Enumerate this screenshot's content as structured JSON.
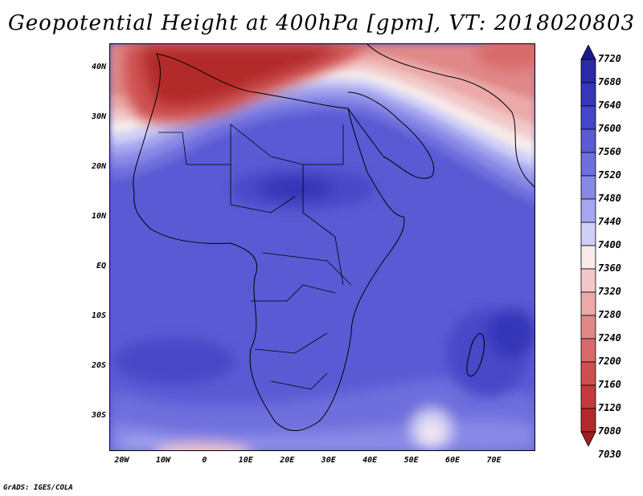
{
  "title": "Geopotential Height at 400hPa [gpm], VT: 2018020803",
  "footer": "GrADS: IGES/COLA",
  "map": {
    "lon_range": [
      -23,
      80
    ],
    "lat_range": [
      -37,
      45
    ],
    "lat_ticks": [
      {
        "label": "40N",
        "lat": 40
      },
      {
        "label": "30N",
        "lat": 30
      },
      {
        "label": "20N",
        "lat": 20
      },
      {
        "label": "10N",
        "lat": 10
      },
      {
        "label": "EQ",
        "lat": 0
      },
      {
        "label": "10S",
        "lat": -10
      },
      {
        "label": "20S",
        "lat": -20
      },
      {
        "label": "30S",
        "lat": -30
      }
    ],
    "lon_ticks": [
      {
        "label": "20W",
        "lon": -20
      },
      {
        "label": "10W",
        "lon": -10
      },
      {
        "label": "0",
        "lon": 0
      },
      {
        "label": "10E",
        "lon": 10
      },
      {
        "label": "20E",
        "lon": 20
      },
      {
        "label": "30E",
        "lon": 30
      },
      {
        "label": "40E",
        "lon": 40
      },
      {
        "label": "50E",
        "lon": 50
      },
      {
        "label": "60E",
        "lon": 60
      },
      {
        "label": "70E",
        "lon": 70
      }
    ]
  },
  "colorbar": {
    "labels": [
      "7720",
      "7680",
      "7640",
      "7600",
      "7560",
      "7520",
      "7480",
      "7440",
      "7400",
      "7360",
      "7320",
      "7280",
      "7240",
      "7200",
      "7160",
      "7120",
      "7080",
      "7030"
    ],
    "colors": [
      "#1a1a8c",
      "#2a2aa6",
      "#3636b8",
      "#4646c8",
      "#5a5ad4",
      "#6e6edd",
      "#8888e6",
      "#a6a6ef",
      "#cfcff7",
      "#f6eaea",
      "#f3c8c8",
      "#eba9a9",
      "#e08888",
      "#d86a6a",
      "#cf4f4f",
      "#c43a3a",
      "#b32a2a",
      "#a01e1e"
    ]
  }
}
